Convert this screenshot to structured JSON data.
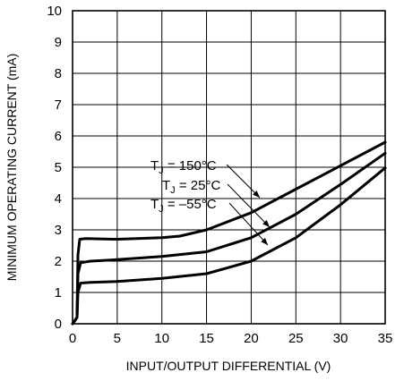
{
  "chart_data": {
    "type": "line",
    "xlabel": "INPUT/OUTPUT DIFFERENTIAL (V)",
    "ylabel": "MINIMUM OPERATING CURRENT (mA)",
    "xlim": [
      0,
      35
    ],
    "ylim": [
      0,
      10
    ],
    "x_ticks": [
      "0",
      "5",
      "10",
      "15",
      "20",
      "25",
      "30",
      "35"
    ],
    "y_ticks": [
      "0",
      "1",
      "2",
      "3",
      "4",
      "5",
      "6",
      "7",
      "8",
      "9",
      "10"
    ],
    "grid": true,
    "series": [
      {
        "name": "T_J = 150°C",
        "points": [
          [
            0,
            0
          ],
          [
            0.5,
            0.2
          ],
          [
            0.6,
            2.2
          ],
          [
            0.8,
            2.7
          ],
          [
            1.5,
            2.72
          ],
          [
            5,
            2.7
          ],
          [
            10,
            2.75
          ],
          [
            12,
            2.8
          ],
          [
            15,
            3.0
          ],
          [
            20,
            3.55
          ],
          [
            25,
            4.3
          ],
          [
            30,
            5.05
          ],
          [
            35,
            5.8
          ]
        ]
      },
      {
        "name": "T_J = 25°C",
        "points": [
          [
            0,
            0
          ],
          [
            0.5,
            0.2
          ],
          [
            0.6,
            1.6
          ],
          [
            0.9,
            1.95
          ],
          [
            2,
            2.0
          ],
          [
            5,
            2.05
          ],
          [
            10,
            2.15
          ],
          [
            15,
            2.3
          ],
          [
            20,
            2.75
          ],
          [
            25,
            3.5
          ],
          [
            30,
            4.45
          ],
          [
            35,
            5.45
          ]
        ]
      },
      {
        "name": "T_J = –55°C",
        "points": [
          [
            0,
            0
          ],
          [
            0.5,
            0.2
          ],
          [
            0.6,
            1.0
          ],
          [
            0.9,
            1.3
          ],
          [
            2,
            1.32
          ],
          [
            5,
            1.35
          ],
          [
            10,
            1.45
          ],
          [
            15,
            1.6
          ],
          [
            20,
            2.0
          ],
          [
            25,
            2.75
          ],
          [
            30,
            3.8
          ],
          [
            35,
            4.98
          ]
        ]
      }
    ],
    "annotations": [
      {
        "main": "T",
        "sub": "J",
        "rest": " = 150°C"
      },
      {
        "main": "T",
        "sub": "J",
        "rest": " = 25°C"
      },
      {
        "main": "T",
        "sub": "J",
        "rest": " = –55°C"
      }
    ]
  }
}
